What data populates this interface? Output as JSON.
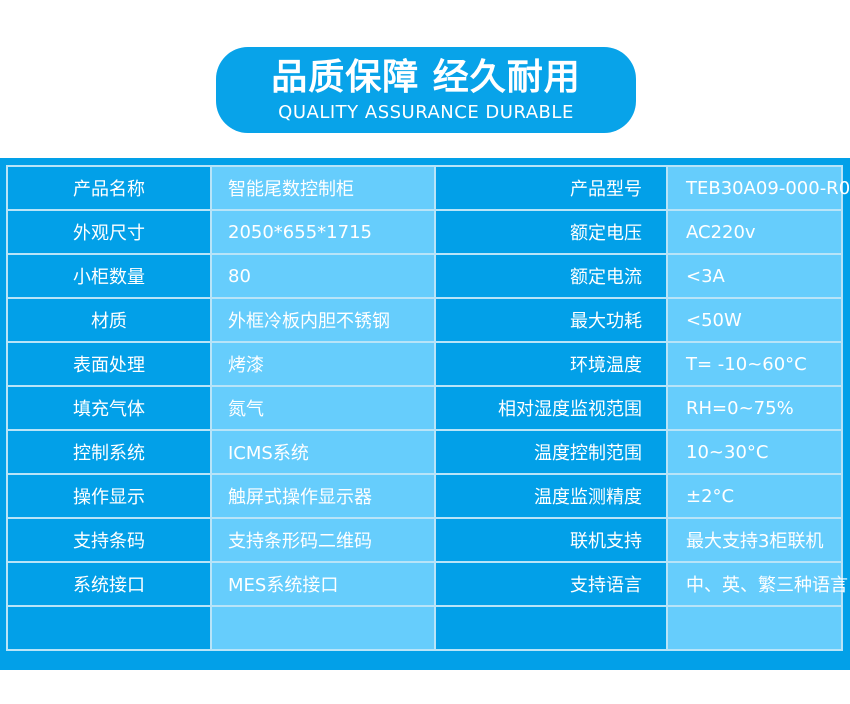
{
  "header": {
    "title": "品质保障 经久耐用",
    "subtitle": "QUALITY ASSURANCE DURABLE"
  },
  "colors": {
    "dark": "#02a0e8",
    "light": "#66cdfc"
  },
  "rows": [
    {
      "k1": "产品名称",
      "v1": "智能尾数控制柜",
      "k2": "产品型号",
      "v2": "TEB30A09-000-R0"
    },
    {
      "k1": "外观尺寸",
      "v1": "2050*655*1715",
      "k2": "额定电压",
      "v2": "AC220v"
    },
    {
      "k1": "小柜数量",
      "v1": "80",
      "k2": "额定电流",
      "v2": "<3A"
    },
    {
      "k1": "材质",
      "v1": "外框冷板内胆不锈钢",
      "k2": "最大功耗",
      "v2": "<50W"
    },
    {
      "k1": "表面处理",
      "v1": "烤漆",
      "k2": "环境温度",
      "v2": "T= -10~60°C"
    },
    {
      "k1": "填充气体",
      "v1": "氮气",
      "k2": "相对湿度监视范围",
      "v2": "RH=0~75%"
    },
    {
      "k1": "控制系统",
      "v1": "ICMS系统",
      "k2": "温度控制范围",
      "v2": "10~30°C"
    },
    {
      "k1": "操作显示",
      "v1": "触屏式操作显示器",
      "k2": "温度监测精度",
      "v2": "±2°C"
    },
    {
      "k1": "支持条码",
      "v1": "支持条形码二维码",
      "k2": "联机支持",
      "v2": "最大支持3柜联机"
    },
    {
      "k1": "系统接口",
      "v1": "MES系统接口",
      "k2": "支持语言",
      "v2": "中、英、繁三种语言"
    },
    {
      "k1": "",
      "v1": "",
      "k2": "",
      "v2": ""
    }
  ]
}
